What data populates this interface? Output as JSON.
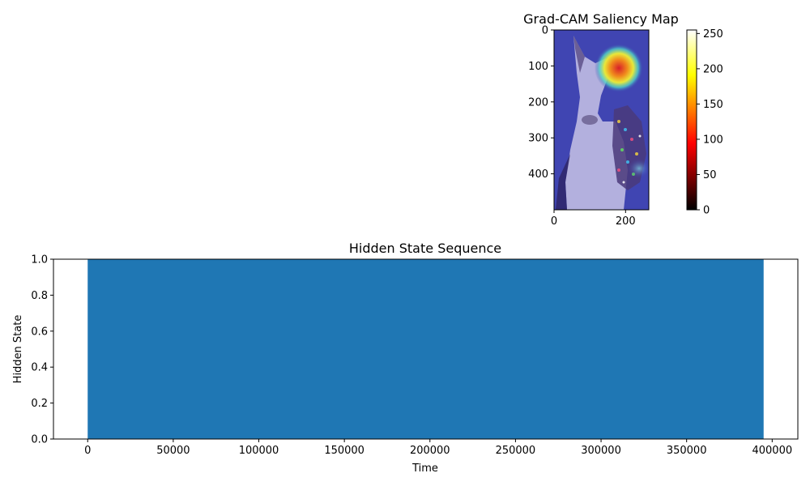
{
  "chart_data": [
    {
      "type": "heatmap",
      "title": "Grad-CAM Saliency Map",
      "image_shape": [
        500,
        265
      ],
      "x_ticks": [
        0,
        200
      ],
      "y_ticks": [
        0,
        100,
        200,
        300,
        400
      ],
      "x_range": [
        0,
        265
      ],
      "y_range": [
        500,
        0
      ],
      "hotspot": {
        "x": 175,
        "y": 100,
        "label": "peak saliency over dog's head/ear"
      },
      "colorbar": {
        "colormap": "hot",
        "range": [
          0,
          255
        ],
        "ticks": [
          0,
          50,
          100,
          150,
          200,
          250
        ]
      },
      "colors": {
        "overlay": "#3a3fae",
        "hot_core": "#d0202a"
      }
    },
    {
      "type": "area",
      "title": "Hidden State Sequence",
      "xlabel": "Time",
      "ylabel": "Hidden State",
      "xlim": [
        -20000,
        415000
      ],
      "ylim": [
        0,
        1
      ],
      "x_ticks": [
        0,
        50000,
        100000,
        150000,
        200000,
        250000,
        300000,
        350000,
        400000
      ],
      "y_ticks": [
        "0.0",
        "0.2",
        "0.4",
        "0.6",
        "0.8",
        "1.0"
      ],
      "series": [
        {
          "x": [
            0,
            395000
          ],
          "values": [
            1,
            1
          ],
          "color": "#1f77b4"
        }
      ],
      "grid": false
    }
  ]
}
